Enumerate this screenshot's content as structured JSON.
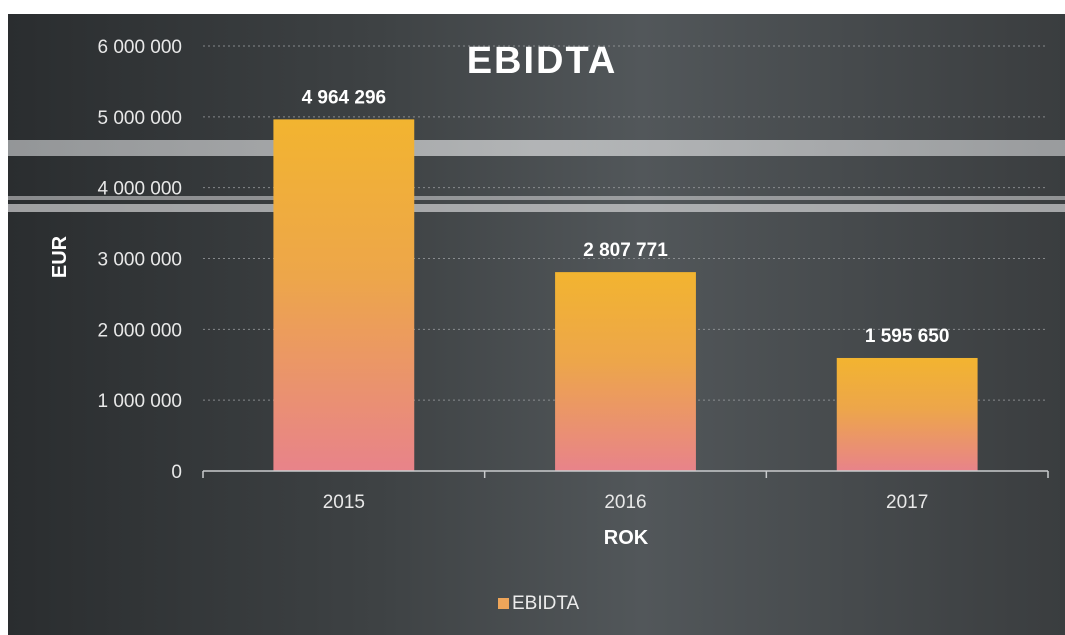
{
  "chart_data": {
    "type": "bar",
    "title": "EBIDTA",
    "xlabel": "ROK",
    "ylabel": "EUR",
    "categories": [
      "2015",
      "2016",
      "2017"
    ],
    "series": [
      {
        "name": "EBIDTA",
        "values": [
          4964296,
          2807771,
          1595650
        ]
      }
    ],
    "data_labels": [
      "4 964 296",
      "2 807 771",
      "1 595 650"
    ],
    "y_ticks": [
      0,
      1000000,
      2000000,
      3000000,
      4000000,
      5000000,
      6000000
    ],
    "y_tick_labels": [
      "0",
      "1 000 000",
      "2 000 000",
      "3 000 000",
      "4 000 000",
      "5 000 000",
      "6 000 000"
    ],
    "ylim": [
      0,
      6000000
    ],
    "grid": true,
    "legend_position": "bottom",
    "colors": {
      "bar_top": "#f2b430",
      "bar_bottom": "#e8838a",
      "background_dark": "#2c2f31",
      "background_mid": "#4a4d4f"
    }
  }
}
